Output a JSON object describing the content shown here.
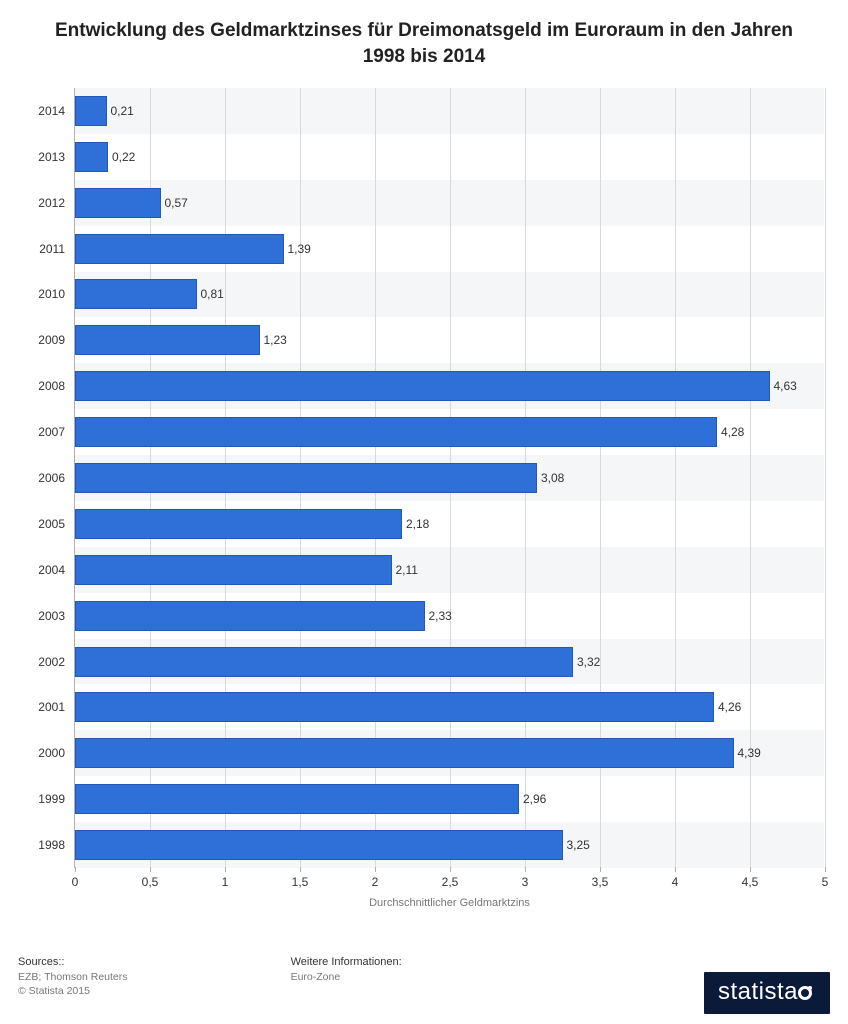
{
  "title": "Entwicklung des Geldmarktzinses für Dreimonatsgeld im Euroraum in den Jahren 1998 bis 2014",
  "chart": {
    "type": "bar-horizontal",
    "xlabel": "Durchschnittlicher Geldmarktzins",
    "xlim": [
      0,
      5
    ],
    "xtick_step": 0.5,
    "xticks": [
      "0",
      "0,5",
      "1",
      "1,5",
      "2",
      "2,5",
      "3",
      "3,5",
      "4",
      "4,5",
      "5"
    ],
    "bar_color": "#2e70d8",
    "bar_border": "#2259b5",
    "background_color": "#ffffff",
    "alt_band_color": "#f5f6f7",
    "grid_color": "#d9d9d9",
    "axis_color": "#b0b0b0",
    "label_fontsize": 12,
    "title_fontsize": 19,
    "categories": [
      "2014",
      "2013",
      "2012",
      "2011",
      "2010",
      "2009",
      "2008",
      "2007",
      "2006",
      "2005",
      "2004",
      "2003",
      "2002",
      "2001",
      "2000",
      "1999",
      "1998"
    ],
    "values": [
      0.21,
      0.22,
      0.57,
      1.39,
      0.81,
      1.23,
      4.63,
      4.28,
      3.08,
      2.18,
      2.11,
      2.33,
      3.32,
      4.26,
      4.39,
      2.96,
      3.25
    ],
    "value_labels": [
      "0,21",
      "0,22",
      "0,57",
      "1,39",
      "0,81",
      "1,23",
      "4,63",
      "4,28",
      "3,08",
      "2,18",
      "2,11",
      "2,33",
      "3,32",
      "4,26",
      "4,39",
      "2,96",
      "3,25"
    ]
  },
  "footer": {
    "sources_hdr": "Sources::",
    "sources_lines": "EZB; Thomson Reuters",
    "copyright": "© Statista 2015",
    "info_hdr": "Weitere Informationen:",
    "info_line": "Euro-Zone",
    "logo_text": "statista"
  }
}
